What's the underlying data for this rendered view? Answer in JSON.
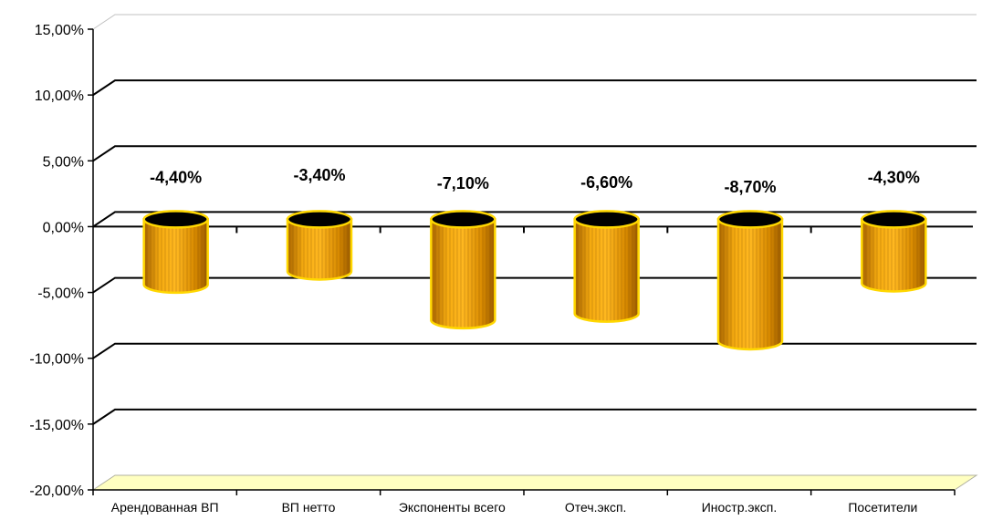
{
  "chart_data": {
    "type": "bar",
    "style": "3d-cylinder",
    "categories": [
      "Арендованная ВП",
      "ВП нетто",
      "Экспоненты всего",
      "Отеч.эксп.",
      "Иностр.эксп.",
      "Посетители"
    ],
    "series": [
      {
        "values": [
          -4.4,
          -3.4,
          -7.1,
          -6.6,
          -8.7,
          -4.3
        ]
      }
    ],
    "data_labels": [
      "-4,40%",
      "-3,40%",
      "-7,10%",
      "-6,60%",
      "-8,70%",
      "-4,30%"
    ],
    "y_ticks": [
      15,
      10,
      5,
      0,
      -5,
      -10,
      -15,
      -20
    ],
    "y_tick_labels": [
      "15,00%",
      "10,00%",
      "5,00%",
      "0,00%",
      "-5,00%",
      "-10,00%",
      "-15,00%",
      "-20,00%"
    ],
    "ylim": [
      -20,
      15
    ],
    "grid": true,
    "legend": "none",
    "title": "",
    "xlabel": "",
    "ylabel": "",
    "colors": {
      "bar_fill": "#f2a000",
      "bar_outline": "#ffd700",
      "bar_top": "#000000",
      "floor_fill": "#ffffc0",
      "grid": "#000000"
    }
  }
}
